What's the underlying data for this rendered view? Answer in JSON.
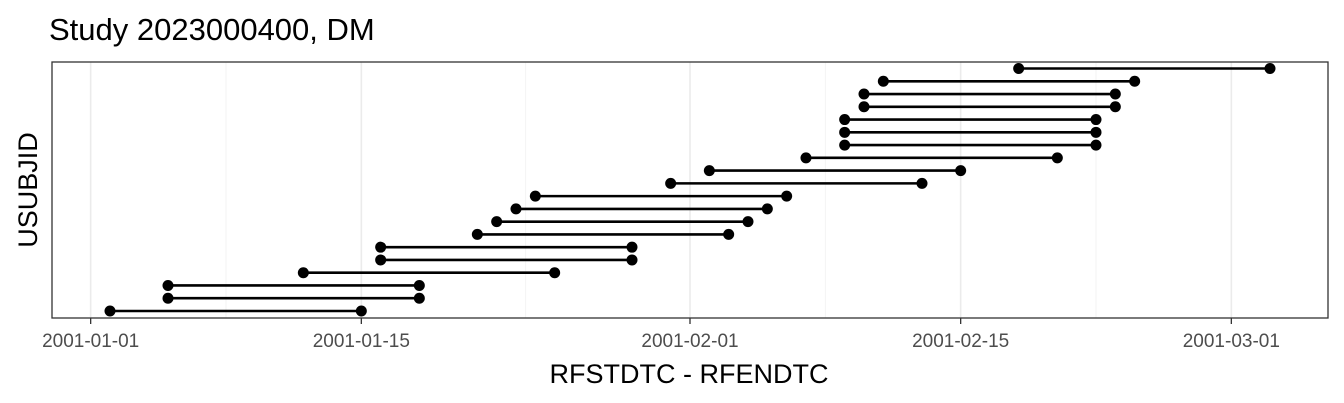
{
  "chart_data": {
    "type": "dumbbell",
    "title": "Study 2023000400, DM",
    "xlabel": "RFSTDTC - RFENDTC",
    "ylabel": "USUBJID",
    "x_type": "date",
    "xlim": [
      "2000-12-30",
      "2001-03-06"
    ],
    "x_ticks": [
      "2001-01-01",
      "2001-01-15",
      "2001-02-01",
      "2001-02-15",
      "2001-03-01"
    ],
    "grid": true,
    "colors": {
      "marks": "#000000",
      "grid": "#ebebeb",
      "border": "#333333"
    },
    "rows": [
      {
        "start": "2001-01-02",
        "end": "2001-01-15"
      },
      {
        "start": "2001-01-05",
        "end": "2001-01-18"
      },
      {
        "start": "2001-01-05",
        "end": "2001-01-18"
      },
      {
        "start": "2001-01-12",
        "end": "2001-01-25"
      },
      {
        "start": "2001-01-16",
        "end": "2001-01-29"
      },
      {
        "start": "2001-01-16",
        "end": "2001-01-29"
      },
      {
        "start": "2001-01-21",
        "end": "2001-02-03"
      },
      {
        "start": "2001-01-22",
        "end": "2001-02-04"
      },
      {
        "start": "2001-01-23",
        "end": "2001-02-05"
      },
      {
        "start": "2001-01-24",
        "end": "2001-02-06"
      },
      {
        "start": "2001-01-31",
        "end": "2001-02-13"
      },
      {
        "start": "2001-02-02",
        "end": "2001-02-15"
      },
      {
        "start": "2001-02-07",
        "end": "2001-02-20"
      },
      {
        "start": "2001-02-09",
        "end": "2001-02-22"
      },
      {
        "start": "2001-02-09",
        "end": "2001-02-22"
      },
      {
        "start": "2001-02-09",
        "end": "2001-02-22"
      },
      {
        "start": "2001-02-10",
        "end": "2001-02-23"
      },
      {
        "start": "2001-02-10",
        "end": "2001-02-23"
      },
      {
        "start": "2001-02-11",
        "end": "2001-02-24"
      },
      {
        "start": "2001-02-18",
        "end": "2001-03-03"
      }
    ]
  }
}
